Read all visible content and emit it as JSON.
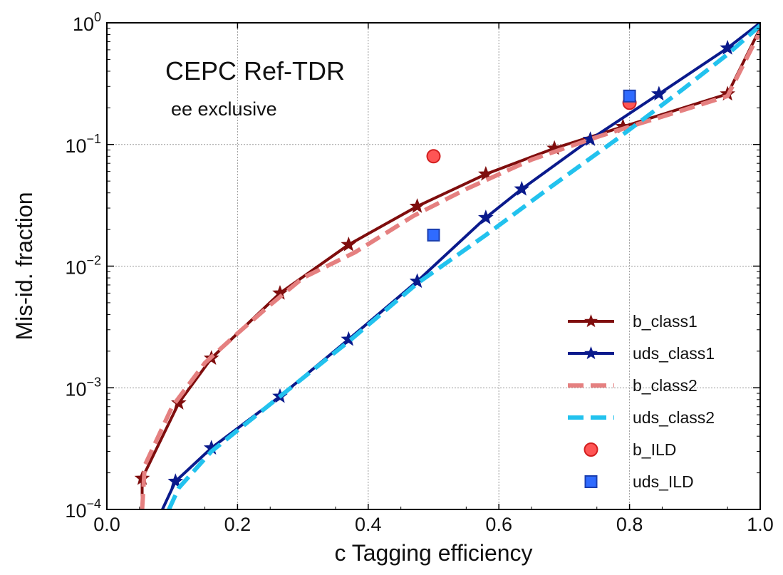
{
  "chart_data": {
    "type": "line",
    "xlabel": "c Tagging efficiency",
    "ylabel": "Mis-id. fraction",
    "xlim": [
      0.0,
      1.0
    ],
    "ylim": [
      0.0001,
      1
    ],
    "yscale": "log",
    "grid": true,
    "legend_position": "bottom-right",
    "xticks": [
      "0.0",
      "0.2",
      "0.4",
      "0.6",
      "0.8",
      "1.0"
    ],
    "yticks": [
      {
        "base": "10",
        "exp": "−4",
        "value": 0.0001
      },
      {
        "base": "10",
        "exp": "−3",
        "value": 0.001
      },
      {
        "base": "10",
        "exp": "−2",
        "value": 0.01
      },
      {
        "base": "10",
        "exp": "−1",
        "value": 0.1
      },
      {
        "base": "10",
        "exp": "0",
        "value": 1
      }
    ],
    "annotations": {
      "main": "CEPC Ref-TDR",
      "sub": "ee exclusive"
    },
    "series": [
      {
        "name": "b_class1",
        "style": "line-star",
        "color": "#7f0d0d",
        "x": [
          0.054,
          0.054,
          0.11,
          0.16,
          0.265,
          0.37,
          0.475,
          0.58,
          0.685,
          0.79,
          0.95,
          1.0
        ],
        "y": [
          0.0001,
          0.00018,
          0.00075,
          0.00175,
          0.006,
          0.015,
          0.031,
          0.057,
          0.093,
          0.14,
          0.26,
          0.9
        ]
      },
      {
        "name": "uds_class1",
        "style": "line-star",
        "color": "#0a1a8c",
        "x": [
          0.085,
          0.105,
          0.16,
          0.265,
          0.37,
          0.475,
          0.58,
          0.635,
          0.74,
          0.845,
          0.95,
          1.0
        ],
        "y": [
          0.0001,
          0.00017,
          0.00032,
          0.00085,
          0.0025,
          0.0075,
          0.025,
          0.043,
          0.11,
          0.26,
          0.62,
          1.0
        ]
      },
      {
        "name": "b_class2",
        "style": "dashed",
        "color": "#e58080",
        "x": [
          0.054,
          0.058,
          0.1,
          0.15,
          0.2,
          0.25,
          0.3,
          0.38,
          0.47,
          0.55,
          0.65,
          0.75,
          0.8,
          0.88,
          0.95,
          1.0
        ],
        "y": [
          0.0001,
          0.00023,
          0.0007,
          0.0016,
          0.0028,
          0.0048,
          0.008,
          0.013,
          0.026,
          0.043,
          0.075,
          0.115,
          0.14,
          0.19,
          0.25,
          0.85
        ]
      },
      {
        "name": "uds_class2",
        "style": "dashed",
        "color": "#22c2ee",
        "x": [
          0.095,
          0.11,
          0.16,
          0.265,
          0.37,
          0.475,
          0.58,
          0.68,
          0.78,
          0.88,
          0.95,
          1.0
        ],
        "y": [
          0.0001,
          0.00015,
          0.0003,
          0.00085,
          0.0024,
          0.0072,
          0.018,
          0.045,
          0.11,
          0.28,
          0.55,
          0.95
        ]
      },
      {
        "name": "b_ILD",
        "style": "circle",
        "color": "#ff5555",
        "x": [
          0.5,
          0.8
        ],
        "y": [
          0.08,
          0.22
        ]
      },
      {
        "name": "uds_ILD",
        "style": "square",
        "color": "#2f6bff",
        "x": [
          0.5,
          0.8
        ],
        "y": [
          0.018,
          0.25
        ]
      }
    ]
  }
}
